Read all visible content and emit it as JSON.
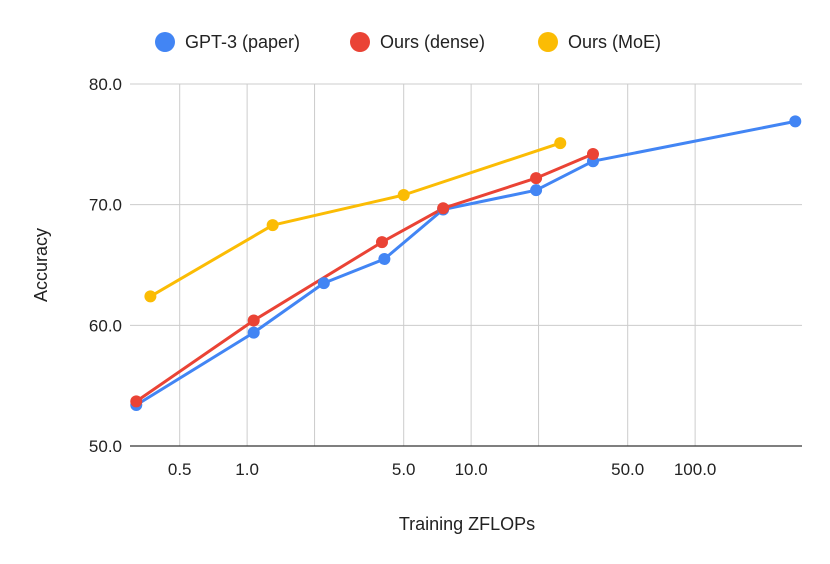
{
  "chart_data": {
    "type": "line",
    "title": "",
    "xlabel": "Training ZFLOPs",
    "ylabel": "Accuracy",
    "x_scale": "log",
    "xlim": [
      0.3,
      300
    ],
    "ylim": [
      50,
      80
    ],
    "grid": true,
    "legend_position": "top",
    "x_ticks": [
      {
        "value": 0.5,
        "label": "0.5"
      },
      {
        "value": 1.0,
        "label": "1.0"
      },
      {
        "value": 5.0,
        "label": "5.0"
      },
      {
        "value": 10.0,
        "label": "10.0"
      },
      {
        "value": 50.0,
        "label": "50.0"
      },
      {
        "value": 100.0,
        "label": "100.0"
      }
    ],
    "x_minor_grid": [
      2.0,
      20.0
    ],
    "y_ticks": [
      {
        "value": 50,
        "label": "50.0"
      },
      {
        "value": 60,
        "label": "60.0"
      },
      {
        "value": 70,
        "label": "70.0"
      },
      {
        "value": 80,
        "label": "80.0"
      }
    ],
    "series": [
      {
        "name": "GPT-3 (paper)",
        "color": "#4285F4",
        "points": [
          {
            "x": 0.32,
            "y": 53.4
          },
          {
            "x": 1.07,
            "y": 59.4
          },
          {
            "x": 2.2,
            "y": 63.5
          },
          {
            "x": 4.1,
            "y": 65.5
          },
          {
            "x": 7.5,
            "y": 69.6
          },
          {
            "x": 19.5,
            "y": 71.2
          },
          {
            "x": 35.0,
            "y": 73.6
          },
          {
            "x": 280.0,
            "y": 76.9
          }
        ]
      },
      {
        "name": "Ours (dense)",
        "color": "#EA4335",
        "points": [
          {
            "x": 0.32,
            "y": 53.7
          },
          {
            "x": 1.07,
            "y": 60.4
          },
          {
            "x": 4.0,
            "y": 66.9
          },
          {
            "x": 7.5,
            "y": 69.7
          },
          {
            "x": 19.5,
            "y": 72.2
          },
          {
            "x": 35.0,
            "y": 74.2
          }
        ]
      },
      {
        "name": "Ours (MoE)",
        "color": "#FBBC04",
        "points": [
          {
            "x": 0.37,
            "y": 62.4
          },
          {
            "x": 1.3,
            "y": 68.3
          },
          {
            "x": 5.0,
            "y": 70.8
          },
          {
            "x": 25.0,
            "y": 75.1
          }
        ]
      }
    ]
  }
}
